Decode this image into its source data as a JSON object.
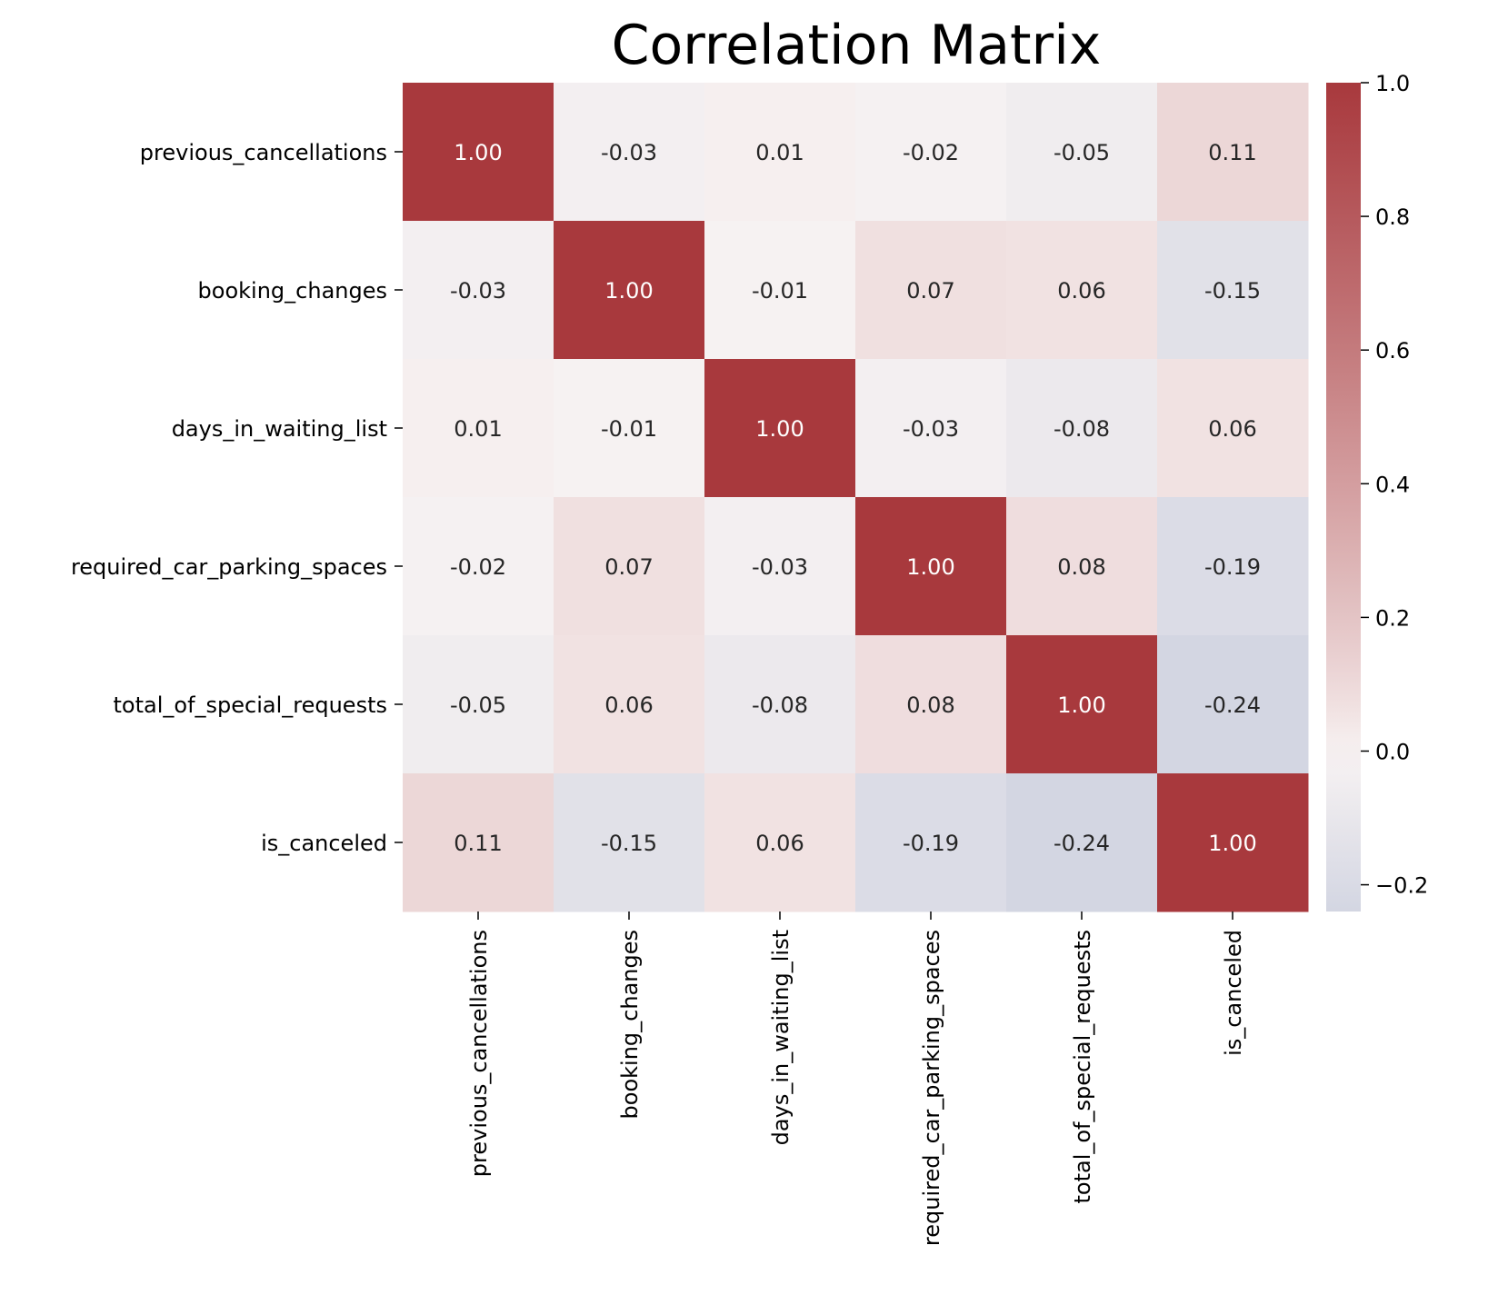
{
  "chart_data": {
    "type": "heatmap",
    "title": "Correlation Matrix",
    "row_labels": [
      "previous_cancellations",
      "booking_changes",
      "days_in_waiting_list",
      "required_car_parking_spaces",
      "total_of_special_requests",
      "is_canceled"
    ],
    "col_labels": [
      "previous_cancellations",
      "booking_changes",
      "days_in_waiting_list",
      "required_car_parking_spaces",
      "total_of_special_requests",
      "is_canceled"
    ],
    "values": [
      [
        1.0,
        -0.03,
        0.01,
        -0.02,
        -0.05,
        0.11
      ],
      [
        -0.03,
        1.0,
        -0.01,
        0.07,
        0.06,
        -0.15
      ],
      [
        0.01,
        -0.01,
        1.0,
        -0.03,
        -0.08,
        0.06
      ],
      [
        -0.02,
        0.07,
        -0.03,
        1.0,
        0.08,
        -0.19
      ],
      [
        -0.05,
        0.06,
        -0.08,
        0.08,
        1.0,
        -0.24
      ],
      [
        0.11,
        -0.15,
        0.06,
        -0.19,
        -0.24,
        1.0
      ]
    ],
    "value_format": "0.00",
    "colorbar": {
      "colormap": "vlag",
      "center": 0.0,
      "vmin": -0.24,
      "vmax": 1.0,
      "ticks": [
        -0.2,
        0.0,
        0.2,
        0.4,
        0.6,
        0.8,
        1.0
      ],
      "tick_labels": [
        "−0.2",
        "0.0",
        "0.2",
        "0.4",
        "0.6",
        "0.8",
        "1.0"
      ]
    },
    "colors": {
      "low": "#d3d6e2",
      "mid": "#f8f3f3",
      "high": "#a8393d",
      "text_dark": "#262626",
      "text_light": "#ffffff"
    }
  }
}
